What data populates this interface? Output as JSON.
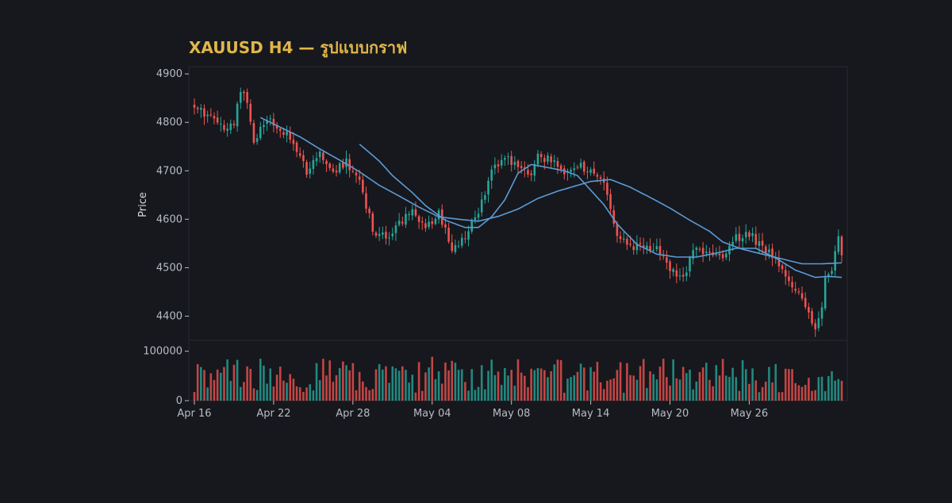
{
  "colors": {
    "background": "#16181d",
    "panel": "#16181d",
    "panel_border": "#262a34",
    "title": "#e0b64a",
    "axis_text": "#b8bcc4",
    "up": "#26a69a",
    "down": "#ef5350",
    "ma": "#5b9bd5"
  },
  "chart_data": {
    "type": "candlestick",
    "title": "XAUUSD H4 — รูปแบบกราฟ",
    "xlabel": "",
    "ylabel": "Price",
    "price_ylim": [
      4350,
      4915
    ],
    "price_yticks": [
      4400,
      4500,
      4600,
      4700,
      4800,
      4900
    ],
    "volume_ylim": [
      0,
      122000
    ],
    "volume_yticks": [
      0,
      100000
    ],
    "x_tick_labels": [
      "Apr 16",
      "Apr 22",
      "Apr 28",
      "May 04",
      "May 08",
      "May 14",
      "May 20",
      "May 26"
    ],
    "x_tick_bars": [
      0,
      24,
      48,
      72,
      96,
      120,
      144,
      168
    ],
    "bars_total": 197,
    "close_anchors": [
      [
        0,
        4825
      ],
      [
        5,
        4815
      ],
      [
        9,
        4790
      ],
      [
        12,
        4800
      ],
      [
        14,
        4870
      ],
      [
        16,
        4838
      ],
      [
        18,
        4760
      ],
      [
        22,
        4808
      ],
      [
        26,
        4790
      ],
      [
        30,
        4755
      ],
      [
        34,
        4700
      ],
      [
        38,
        4735
      ],
      [
        42,
        4700
      ],
      [
        46,
        4720
      ],
      [
        50,
        4680
      ],
      [
        54,
        4578
      ],
      [
        58,
        4560
      ],
      [
        62,
        4590
      ],
      [
        66,
        4628
      ],
      [
        70,
        4575
      ],
      [
        74,
        4620
      ],
      [
        78,
        4530
      ],
      [
        82,
        4568
      ],
      [
        86,
        4610
      ],
      [
        90,
        4700
      ],
      [
        94,
        4730
      ],
      [
        98,
        4710
      ],
      [
        102,
        4690
      ],
      [
        104,
        4728
      ],
      [
        108,
        4725
      ],
      [
        112,
        4700
      ],
      [
        116,
        4710
      ],
      [
        120,
        4700
      ],
      [
        124,
        4680
      ],
      [
        128,
        4560
      ],
      [
        132,
        4545
      ],
      [
        136,
        4540
      ],
      [
        140,
        4540
      ],
      [
        144,
        4500
      ],
      [
        148,
        4475
      ],
      [
        150,
        4520
      ],
      [
        152,
        4540
      ],
      [
        156,
        4530
      ],
      [
        160,
        4520
      ],
      [
        164,
        4560
      ],
      [
        168,
        4572
      ],
      [
        172,
        4540
      ],
      [
        176,
        4520
      ],
      [
        180,
        4480
      ],
      [
        184,
        4430
      ],
      [
        186,
        4400
      ],
      [
        188,
        4375
      ],
      [
        190,
        4420
      ],
      [
        191,
        4480
      ],
      [
        193,
        4500
      ],
      [
        195,
        4560
      ],
      [
        196,
        4525
      ]
    ],
    "ma_short_anchors": [
      [
        50,
        4755
      ],
      [
        56,
        4720
      ],
      [
        60,
        4690
      ],
      [
        66,
        4655
      ],
      [
        70,
        4628
      ],
      [
        76,
        4598
      ],
      [
        82,
        4583
      ],
      [
        86,
        4583
      ],
      [
        90,
        4605
      ],
      [
        94,
        4640
      ],
      [
        98,
        4695
      ],
      [
        102,
        4713
      ],
      [
        106,
        4708
      ],
      [
        112,
        4700
      ],
      [
        116,
        4690
      ],
      [
        120,
        4660
      ],
      [
        124,
        4630
      ],
      [
        128,
        4590
      ],
      [
        134,
        4548
      ],
      [
        140,
        4528
      ],
      [
        146,
        4522
      ],
      [
        152,
        4522
      ],
      [
        158,
        4530
      ],
      [
        164,
        4540
      ],
      [
        170,
        4540
      ],
      [
        176,
        4520
      ],
      [
        182,
        4495
      ],
      [
        188,
        4480
      ],
      [
        192,
        4482
      ],
      [
        196,
        4480
      ]
    ],
    "ma_long_anchors": [
      [
        20,
        4810
      ],
      [
        26,
        4790
      ],
      [
        32,
        4770
      ],
      [
        38,
        4745
      ],
      [
        44,
        4722
      ],
      [
        50,
        4698
      ],
      [
        56,
        4670
      ],
      [
        62,
        4648
      ],
      [
        68,
        4625
      ],
      [
        74,
        4605
      ],
      [
        80,
        4600
      ],
      [
        86,
        4596
      ],
      [
        92,
        4606
      ],
      [
        98,
        4621
      ],
      [
        104,
        4643
      ],
      [
        110,
        4658
      ],
      [
        116,
        4670
      ],
      [
        120,
        4678
      ],
      [
        126,
        4682
      ],
      [
        132,
        4666
      ],
      [
        138,
        4645
      ],
      [
        144,
        4623
      ],
      [
        150,
        4598
      ],
      [
        156,
        4575
      ],
      [
        160,
        4553
      ],
      [
        166,
        4538
      ],
      [
        172,
        4528
      ],
      [
        178,
        4518
      ],
      [
        184,
        4508
      ],
      [
        190,
        4508
      ],
      [
        196,
        4510
      ]
    ]
  }
}
